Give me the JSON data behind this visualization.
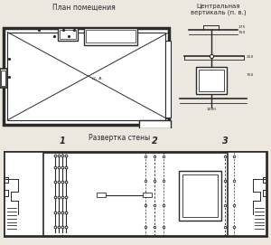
{
  "bg_color": "#ece8e0",
  "line_color": "#2a2a2a",
  "title_plan": "План помещения",
  "title_vertical": "Центральная\nвертикаль (п. в.)",
  "title_razvertka": "Развертка стены"
}
